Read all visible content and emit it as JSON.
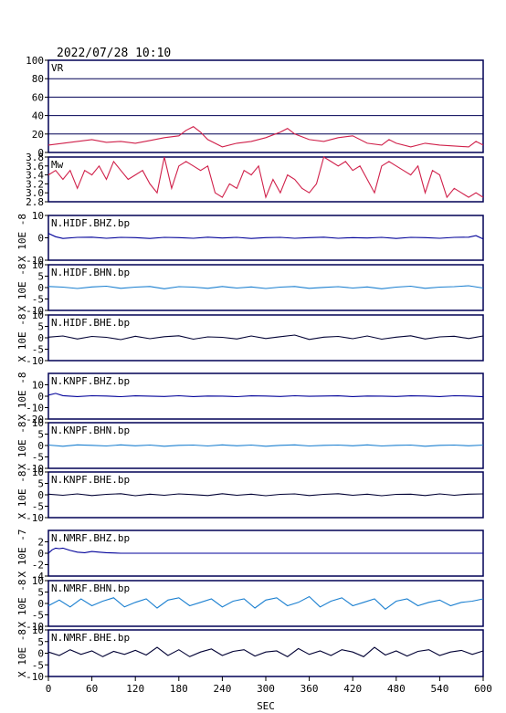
{
  "header": {
    "timestamp": "2022/07/28  10:10"
  },
  "colors": {
    "frame": "#000055",
    "vr": "#d0204a",
    "mw": "#d0204a",
    "dark_blue": "#000099",
    "light_blue": "#1a7fd0",
    "black": "#000000"
  },
  "chart_data": {
    "type": "line",
    "x_axis": {
      "label": "SEC",
      "min": 0,
      "max": 600,
      "ticks": [
        "0",
        "60",
        "120",
        "180",
        "240",
        "300",
        "360",
        "420",
        "480",
        "540",
        "600"
      ]
    },
    "panels": [
      {
        "id": "vr",
        "label": "VR",
        "ylim": [
          0,
          100
        ],
        "yticks": [
          "0",
          "20",
          "40",
          "60",
          "80",
          "100"
        ],
        "grid": true,
        "color": "#d0204a",
        "x": [
          0,
          20,
          40,
          60,
          80,
          100,
          120,
          140,
          160,
          180,
          190,
          200,
          210,
          220,
          240,
          260,
          280,
          300,
          320,
          330,
          340,
          360,
          380,
          400,
          420,
          440,
          460,
          470,
          480,
          500,
          520,
          540,
          560,
          580,
          590,
          600
        ],
        "y": [
          8,
          10,
          12,
          14,
          11,
          12,
          10,
          13,
          16,
          18,
          24,
          28,
          22,
          14,
          6,
          10,
          12,
          16,
          22,
          26,
          20,
          14,
          12,
          16,
          18,
          10,
          8,
          14,
          10,
          6,
          10,
          8,
          7,
          6,
          12,
          8
        ]
      },
      {
        "id": "mw",
        "label": "Mw",
        "ylim": [
          2.8,
          3.8
        ],
        "yticks": [
          "2.8",
          "3.0",
          "3.2",
          "3.4",
          "3.6",
          "3.8"
        ],
        "grid": false,
        "color": "#d0204a",
        "x": [
          0,
          10,
          20,
          30,
          40,
          50,
          60,
          70,
          80,
          90,
          100,
          110,
          120,
          130,
          140,
          150,
          160,
          170,
          180,
          190,
          200,
          210,
          220,
          230,
          240,
          250,
          260,
          270,
          280,
          290,
          300,
          310,
          320,
          330,
          340,
          350,
          360,
          370,
          380,
          390,
          400,
          410,
          420,
          430,
          440,
          450,
          460,
          470,
          480,
          490,
          500,
          510,
          520,
          530,
          540,
          550,
          560,
          570,
          580,
          590,
          600
        ],
        "y": [
          3.4,
          3.5,
          3.3,
          3.5,
          3.1,
          3.5,
          3.4,
          3.6,
          3.3,
          3.7,
          3.5,
          3.3,
          3.4,
          3.5,
          3.2,
          3.0,
          3.8,
          3.1,
          3.6,
          3.7,
          3.6,
          3.5,
          3.6,
          3.0,
          2.9,
          3.2,
          3.1,
          3.5,
          3.4,
          3.6,
          2.9,
          3.3,
          3.0,
          3.4,
          3.3,
          3.1,
          3.0,
          3.2,
          3.8,
          3.7,
          3.6,
          3.7,
          3.5,
          3.6,
          3.3,
          3.0,
          3.6,
          3.7,
          3.6,
          3.5,
          3.4,
          3.6,
          3.0,
          3.5,
          3.4,
          2.9,
          3.1,
          3.0,
          2.9,
          3.0,
          2.9
        ]
      },
      {
        "id": "hidf-bhz",
        "label": "N.HIDF.BHZ.bp",
        "scale_label": "X 10E -8",
        "ylim": [
          -10,
          10
        ],
        "yticks": [
          "-10",
          "0",
          "10"
        ],
        "color": "#000099",
        "x": [
          0,
          10,
          20,
          40,
          60,
          80,
          100,
          120,
          140,
          160,
          180,
          200,
          220,
          240,
          260,
          280,
          300,
          320,
          340,
          360,
          380,
          400,
          420,
          440,
          460,
          480,
          500,
          520,
          540,
          560,
          580,
          590,
          600
        ],
        "y": [
          2,
          0.5,
          -0.3,
          0.2,
          0.3,
          -0.2,
          0.2,
          0.1,
          -0.3,
          0.2,
          0.1,
          -0.2,
          0.3,
          -0.1,
          0.2,
          -0.3,
          0.1,
          0.2,
          -0.2,
          0.1,
          0.3,
          -0.2,
          0.1,
          -0.1,
          0.2,
          -0.3,
          0.2,
          0.1,
          -0.2,
          0.2,
          0.3,
          1.0,
          -0.5
        ]
      },
      {
        "id": "hidf-bhn",
        "label": "N.HIDF.BHN.bp",
        "scale_label": "X 10E -8",
        "ylim": [
          -10,
          10
        ],
        "yticks": [
          "-10",
          "-5",
          "0",
          "5",
          "10"
        ],
        "color": "#1a7fd0",
        "x": [
          0,
          20,
          40,
          60,
          80,
          100,
          120,
          140,
          160,
          180,
          200,
          220,
          240,
          260,
          280,
          300,
          320,
          340,
          360,
          380,
          400,
          420,
          440,
          460,
          480,
          500,
          520,
          540,
          560,
          580,
          600
        ],
        "y": [
          0.5,
          0.2,
          -0.4,
          0.3,
          0.6,
          -0.3,
          0.2,
          0.5,
          -0.5,
          0.4,
          0.2,
          -0.3,
          0.5,
          -0.2,
          0.3,
          -0.4,
          0.2,
          0.5,
          -0.3,
          0.1,
          0.4,
          -0.2,
          0.3,
          -0.5,
          0.2,
          0.6,
          -0.3,
          0.2,
          0.4,
          0.8,
          -0.2
        ]
      },
      {
        "id": "hidf-bhe",
        "label": "N.HIDF.BHE.bp",
        "scale_label": "X 10E -8",
        "ylim": [
          -10,
          10
        ],
        "yticks": [
          "-10",
          "-5",
          "0",
          "5",
          "10"
        ],
        "color": "#000033",
        "x": [
          0,
          20,
          40,
          60,
          80,
          100,
          120,
          140,
          160,
          180,
          200,
          220,
          240,
          260,
          280,
          300,
          320,
          340,
          360,
          380,
          400,
          420,
          440,
          460,
          480,
          500,
          520,
          540,
          560,
          580,
          600
        ],
        "y": [
          0.3,
          0.8,
          -0.5,
          0.6,
          0.2,
          -0.8,
          0.7,
          -0.4,
          0.5,
          0.9,
          -0.6,
          0.4,
          0.2,
          -0.5,
          0.8,
          -0.3,
          0.5,
          1.2,
          -0.7,
          0.3,
          0.6,
          -0.4,
          0.8,
          -0.6,
          0.3,
          0.9,
          -0.5,
          0.4,
          0.7,
          -0.3,
          0.8
        ]
      },
      {
        "id": "knpf-bhz",
        "label": "N.KNPF.BHZ.bp",
        "scale_label": "X 10E -8",
        "ylim": [
          -20,
          20
        ],
        "yticks": [
          "-20",
          "-10",
          "0",
          "10"
        ],
        "color": "#000099",
        "x": [
          0,
          10,
          20,
          40,
          60,
          80,
          100,
          120,
          140,
          160,
          180,
          200,
          220,
          240,
          260,
          280,
          300,
          320,
          340,
          360,
          380,
          400,
          420,
          440,
          460,
          480,
          500,
          520,
          540,
          560,
          580,
          600
        ],
        "y": [
          1.0,
          2.5,
          0.5,
          -0.3,
          0.4,
          0.2,
          -0.4,
          0.3,
          0.1,
          -0.2,
          0.4,
          -0.3,
          0.2,
          0.1,
          -0.4,
          0.3,
          0.2,
          -0.2,
          0.4,
          -0.1,
          0.2,
          0.3,
          -0.3,
          0.2,
          0.1,
          -0.2,
          0.3,
          0.2,
          -0.3,
          0.4,
          0.2,
          -0.5
        ]
      },
      {
        "id": "knpf-bhn",
        "label": "N.KNPF.BHN.bp",
        "scale_label": "X 10E -8",
        "ylim": [
          -10,
          10
        ],
        "yticks": [
          "-10",
          "-5",
          "0",
          "5",
          "10"
        ],
        "color": "#1a7fd0",
        "x": [
          0,
          20,
          40,
          60,
          80,
          100,
          120,
          140,
          160,
          180,
          200,
          220,
          240,
          260,
          280,
          300,
          320,
          340,
          360,
          380,
          400,
          420,
          440,
          460,
          480,
          500,
          520,
          540,
          560,
          580,
          600
        ],
        "y": [
          0.2,
          -0.3,
          0.3,
          0.1,
          -0.2,
          0.3,
          -0.1,
          0.2,
          -0.3,
          0.1,
          0.2,
          -0.2,
          0.3,
          -0.1,
          0.2,
          -0.3,
          0.1,
          0.3,
          -0.2,
          0.1,
          0.2,
          -0.1,
          0.3,
          -0.2,
          0.1,
          0.2,
          -0.3,
          0.1,
          0.2,
          -0.1,
          0.2
        ]
      },
      {
        "id": "knpf-bhe",
        "label": "N.KNPF.BHE.bp",
        "scale_label": "X 10E -8",
        "ylim": [
          -10,
          10
        ],
        "yticks": [
          "-10",
          "-5",
          "0",
          "5",
          "10"
        ],
        "color": "#000033",
        "x": [
          0,
          20,
          40,
          60,
          80,
          100,
          120,
          140,
          160,
          180,
          200,
          220,
          240,
          260,
          280,
          300,
          320,
          340,
          360,
          380,
          400,
          420,
          440,
          460,
          480,
          500,
          520,
          540,
          560,
          580,
          600
        ],
        "y": [
          0.3,
          -0.2,
          0.4,
          -0.3,
          0.2,
          0.5,
          -0.4,
          0.3,
          -0.2,
          0.4,
          0.1,
          -0.3,
          0.5,
          -0.2,
          0.3,
          -0.4,
          0.2,
          0.4,
          -0.3,
          0.2,
          0.5,
          -0.2,
          0.3,
          -0.4,
          0.2,
          0.3,
          -0.3,
          0.4,
          -0.2,
          0.3,
          0.4
        ]
      },
      {
        "id": "nmrf-bhz",
        "label": "N.NMRF.BHZ.bp",
        "scale_label": "X 10E -7",
        "ylim": [
          -4,
          4
        ],
        "yticks": [
          "-4",
          "-2",
          "0",
          "2"
        ],
        "color": "#000099",
        "x": [
          0,
          5,
          10,
          15,
          20,
          25,
          30,
          40,
          50,
          60,
          70,
          80,
          90,
          100,
          120,
          180,
          240,
          300,
          360,
          420,
          480,
          540,
          600
        ],
        "y": [
          0,
          0.6,
          0.9,
          0.8,
          0.9,
          0.7,
          0.5,
          0.2,
          0.1,
          0.3,
          0.2,
          0.1,
          0.05,
          0,
          0,
          0,
          0,
          0,
          0,
          0,
          0,
          0,
          0
        ]
      },
      {
        "id": "nmrf-bhn",
        "label": "N.NMRF.BHN.bp",
        "scale_label": "X 10E -8",
        "ylim": [
          -10,
          10
        ],
        "yticks": [
          "-10",
          "-5",
          "0",
          "5",
          "10"
        ],
        "color": "#1a7fd0",
        "x": [
          0,
          15,
          30,
          45,
          60,
          75,
          90,
          105,
          120,
          135,
          150,
          165,
          180,
          195,
          210,
          225,
          240,
          255,
          270,
          285,
          300,
          315,
          330,
          345,
          360,
          375,
          390,
          405,
          420,
          435,
          450,
          465,
          480,
          495,
          510,
          525,
          540,
          555,
          570,
          585,
          600
        ],
        "y": [
          -1,
          1.5,
          -1.5,
          2.0,
          -1.0,
          1.0,
          2.5,
          -1.5,
          0.5,
          2.0,
          -2.0,
          1.5,
          2.5,
          -1.0,
          0.5,
          2.0,
          -1.5,
          1.0,
          2.0,
          -2.0,
          1.5,
          2.5,
          -1.0,
          0.5,
          3.0,
          -1.5,
          1.0,
          2.5,
          -1.0,
          0.5,
          2.0,
          -2.5,
          1.0,
          2.0,
          -1.0,
          0.5,
          1.5,
          -1.0,
          0.5,
          1.0,
          2.0
        ]
      },
      {
        "id": "nmrf-bhe",
        "label": "N.NMRF.BHE.bp",
        "scale_label": "X 10E -8",
        "ylim": [
          -10,
          10
        ],
        "yticks": [
          "-10",
          "-5",
          "0",
          "5",
          "10"
        ],
        "color": "#000033",
        "x": [
          0,
          15,
          30,
          45,
          60,
          75,
          90,
          105,
          120,
          135,
          150,
          165,
          180,
          195,
          210,
          225,
          240,
          255,
          270,
          285,
          300,
          315,
          330,
          345,
          360,
          375,
          390,
          405,
          420,
          435,
          450,
          465,
          480,
          495,
          510,
          525,
          540,
          555,
          570,
          585,
          600
        ],
        "y": [
          0.5,
          -1.0,
          1.5,
          -0.5,
          1.0,
          -1.5,
          0.8,
          -0.5,
          1.2,
          -0.8,
          2.5,
          -1.0,
          1.5,
          -1.5,
          0.5,
          1.8,
          -1.0,
          0.8,
          1.5,
          -1.2,
          0.5,
          1.0,
          -1.5,
          2.0,
          -0.5,
          1.0,
          -1.0,
          1.5,
          0.5,
          -1.5,
          2.5,
          -0.8,
          1.0,
          -1.2,
          0.8,
          1.5,
          -1.0,
          0.5,
          1.2,
          -0.5,
          1.0
        ]
      }
    ]
  }
}
